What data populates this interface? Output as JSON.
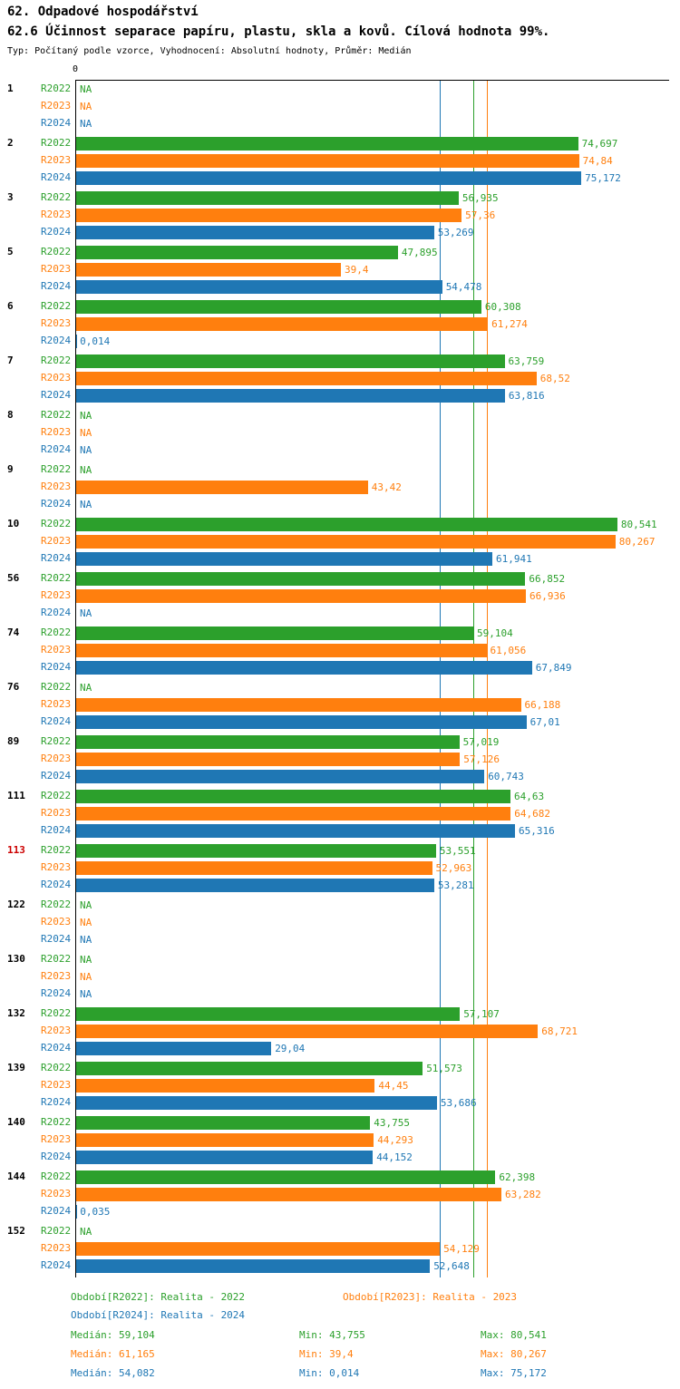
{
  "header": {
    "title": "62. Odpadové hospodářství",
    "subtitle": "62.6 Účinnost separace papíru, plastu, skla a kovů. Cílová hodnota 99%.",
    "meta": "Typ: Počítaný podle vzorce, Vyhodnocení: Absolutní hodnoty, Průměr: Medián"
  },
  "chart_data": {
    "type": "bar",
    "orientation": "horizontal",
    "axis_zero_label": "0",
    "xlim": [
      0,
      88.25
    ],
    "grid": false,
    "value_format": "czech-decimal-comma",
    "na_label": "NA",
    "series_order": [
      "R2022",
      "R2023",
      "R2024"
    ],
    "series_colors": {
      "R2022": "#2ca02c",
      "R2023": "#ff7f0e",
      "R2024": "#1f77b4"
    },
    "id_color": "#000000",
    "highlight_id_color": "#cc0000",
    "median_lines": [
      {
        "series": "R2022",
        "value": 59.104,
        "color": "#2ca02c"
      },
      {
        "series": "R2023",
        "value": 61.165,
        "color": "#ff7f0e"
      },
      {
        "series": "R2024",
        "value": 54.082,
        "color": "#1f77b4"
      }
    ],
    "groups": [
      {
        "id": "1",
        "highlight": false,
        "rows": [
          {
            "series": "R2022",
            "value": null,
            "label": "NA"
          },
          {
            "series": "R2023",
            "value": null,
            "label": "NA"
          },
          {
            "series": "R2024",
            "value": null,
            "label": "NA"
          }
        ]
      },
      {
        "id": "2",
        "highlight": false,
        "rows": [
          {
            "series": "R2022",
            "value": 74.697,
            "label": "74,697"
          },
          {
            "series": "R2023",
            "value": 74.84,
            "label": "74,84"
          },
          {
            "series": "R2024",
            "value": 75.172,
            "label": "75,172"
          }
        ]
      },
      {
        "id": "3",
        "highlight": false,
        "rows": [
          {
            "series": "R2022",
            "value": 56.935,
            "label": "56,935"
          },
          {
            "series": "R2023",
            "value": 57.36,
            "label": "57,36"
          },
          {
            "series": "R2024",
            "value": 53.269,
            "label": "53,269"
          }
        ]
      },
      {
        "id": "5",
        "highlight": false,
        "rows": [
          {
            "series": "R2022",
            "value": 47.895,
            "label": "47,895"
          },
          {
            "series": "R2023",
            "value": 39.4,
            "label": "39,4"
          },
          {
            "series": "R2024",
            "value": 54.478,
            "label": "54,478"
          }
        ]
      },
      {
        "id": "6",
        "highlight": false,
        "rows": [
          {
            "series": "R2022",
            "value": 60.308,
            "label": "60,308"
          },
          {
            "series": "R2023",
            "value": 61.274,
            "label": "61,274"
          },
          {
            "series": "R2024",
            "value": 0.014,
            "label": "0,014"
          }
        ]
      },
      {
        "id": "7",
        "highlight": false,
        "rows": [
          {
            "series": "R2022",
            "value": 63.759,
            "label": "63,759"
          },
          {
            "series": "R2023",
            "value": 68.52,
            "label": "68,52"
          },
          {
            "series": "R2024",
            "value": 63.816,
            "label": "63,816"
          }
        ]
      },
      {
        "id": "8",
        "highlight": false,
        "rows": [
          {
            "series": "R2022",
            "value": null,
            "label": "NA"
          },
          {
            "series": "R2023",
            "value": null,
            "label": "NA"
          },
          {
            "series": "R2024",
            "value": null,
            "label": "NA"
          }
        ]
      },
      {
        "id": "9",
        "highlight": false,
        "rows": [
          {
            "series": "R2022",
            "value": null,
            "label": "NA"
          },
          {
            "series": "R2023",
            "value": 43.42,
            "label": "43,42"
          },
          {
            "series": "R2024",
            "value": null,
            "label": "NA"
          }
        ]
      },
      {
        "id": "10",
        "highlight": false,
        "rows": [
          {
            "series": "R2022",
            "value": 80.541,
            "label": "80,541"
          },
          {
            "series": "R2023",
            "value": 80.267,
            "label": "80,267"
          },
          {
            "series": "R2024",
            "value": 61.941,
            "label": "61,941"
          }
        ]
      },
      {
        "id": "56",
        "highlight": false,
        "rows": [
          {
            "series": "R2022",
            "value": 66.852,
            "label": "66,852"
          },
          {
            "series": "R2023",
            "value": 66.936,
            "label": "66,936"
          },
          {
            "series": "R2024",
            "value": null,
            "label": "NA"
          }
        ]
      },
      {
        "id": "74",
        "highlight": false,
        "rows": [
          {
            "series": "R2022",
            "value": 59.104,
            "label": "59,104"
          },
          {
            "series": "R2023",
            "value": 61.056,
            "label": "61,056"
          },
          {
            "series": "R2024",
            "value": 67.849,
            "label": "67,849"
          }
        ]
      },
      {
        "id": "76",
        "highlight": false,
        "rows": [
          {
            "series": "R2022",
            "value": null,
            "label": "NA"
          },
          {
            "series": "R2023",
            "value": 66.188,
            "label": "66,188"
          },
          {
            "series": "R2024",
            "value": 67.01,
            "label": "67,01"
          }
        ]
      },
      {
        "id": "89",
        "highlight": false,
        "rows": [
          {
            "series": "R2022",
            "value": 57.019,
            "label": "57,019"
          },
          {
            "series": "R2023",
            "value": 57.126,
            "label": "57,126"
          },
          {
            "series": "R2024",
            "value": 60.743,
            "label": "60,743"
          }
        ]
      },
      {
        "id": "111",
        "highlight": false,
        "rows": [
          {
            "series": "R2022",
            "value": 64.63,
            "label": "64,63"
          },
          {
            "series": "R2023",
            "value": 64.682,
            "label": "64,682"
          },
          {
            "series": "R2024",
            "value": 65.316,
            "label": "65,316"
          }
        ]
      },
      {
        "id": "113",
        "highlight": true,
        "rows": [
          {
            "series": "R2022",
            "value": 53.551,
            "label": "53,551"
          },
          {
            "series": "R2023",
            "value": 52.963,
            "label": "52,963"
          },
          {
            "series": "R2024",
            "value": 53.281,
            "label": "53,281"
          }
        ]
      },
      {
        "id": "122",
        "highlight": false,
        "rows": [
          {
            "series": "R2022",
            "value": null,
            "label": "NA"
          },
          {
            "series": "R2023",
            "value": null,
            "label": "NA"
          },
          {
            "series": "R2024",
            "value": null,
            "label": "NA"
          }
        ]
      },
      {
        "id": "130",
        "highlight": false,
        "rows": [
          {
            "series": "R2022",
            "value": null,
            "label": "NA"
          },
          {
            "series": "R2023",
            "value": null,
            "label": "NA"
          },
          {
            "series": "R2024",
            "value": null,
            "label": "NA"
          }
        ]
      },
      {
        "id": "132",
        "highlight": false,
        "rows": [
          {
            "series": "R2022",
            "value": 57.107,
            "label": "57,107"
          },
          {
            "series": "R2023",
            "value": 68.721,
            "label": "68,721"
          },
          {
            "series": "R2024",
            "value": 29.04,
            "label": "29,04"
          }
        ]
      },
      {
        "id": "139",
        "highlight": false,
        "rows": [
          {
            "series": "R2022",
            "value": 51.573,
            "label": "51,573"
          },
          {
            "series": "R2023",
            "value": 44.45,
            "label": "44,45"
          },
          {
            "series": "R2024",
            "value": 53.686,
            "label": "53,686"
          }
        ]
      },
      {
        "id": "140",
        "highlight": false,
        "rows": [
          {
            "series": "R2022",
            "value": 43.755,
            "label": "43,755"
          },
          {
            "series": "R2023",
            "value": 44.293,
            "label": "44,293"
          },
          {
            "series": "R2024",
            "value": 44.152,
            "label": "44,152"
          }
        ]
      },
      {
        "id": "144",
        "highlight": false,
        "rows": [
          {
            "series": "R2022",
            "value": 62.398,
            "label": "62,398"
          },
          {
            "series": "R2023",
            "value": 63.282,
            "label": "63,282"
          },
          {
            "series": "R2024",
            "value": 0.035,
            "label": "0,035"
          }
        ]
      },
      {
        "id": "152",
        "highlight": false,
        "rows": [
          {
            "series": "R2022",
            "value": null,
            "label": "NA"
          },
          {
            "series": "R2023",
            "value": 54.129,
            "label": "54,129"
          },
          {
            "series": "R2024",
            "value": 52.648,
            "label": "52,648"
          }
        ]
      }
    ]
  },
  "footer": {
    "legend": [
      {
        "series": "R2022",
        "label": "Období[R2022]: Realita - 2022"
      },
      {
        "series": "R2023",
        "label": "Období[R2023]: Realita - 2023"
      },
      {
        "series": "R2024",
        "label": "Období[R2024]: Realita - 2024"
      }
    ],
    "stats": [
      {
        "series": "R2022",
        "median": "Medián: 59,104",
        "min": "Min: 43,755",
        "max": "Max: 80,541"
      },
      {
        "series": "R2023",
        "median": "Medián: 61,165",
        "min": "Min: 39,4",
        "max": "Max: 80,267"
      },
      {
        "series": "R2024",
        "median": "Medián: 54,082",
        "min": "Min: 0,014",
        "max": "Max: 75,172"
      }
    ]
  }
}
